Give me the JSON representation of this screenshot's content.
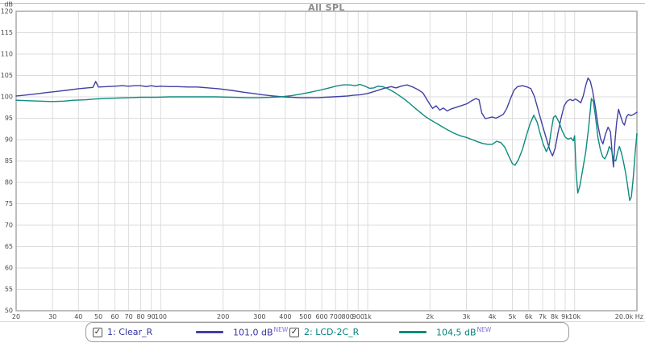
{
  "title": "All SPL",
  "chart_data": {
    "type": "line",
    "title": "All SPL",
    "grid": true,
    "x_axis": {
      "scale": "log",
      "min": 20,
      "max": 20000,
      "unit": "Hz",
      "ticks": [
        {
          "f": 20,
          "label": "20"
        },
        {
          "f": 30,
          "label": "30"
        },
        {
          "f": 40,
          "label": "40"
        },
        {
          "f": 50,
          "label": "50"
        },
        {
          "f": 60,
          "label": "60"
        },
        {
          "f": 70,
          "label": "70"
        },
        {
          "f": 80,
          "label": "80"
        },
        {
          "f": 90,
          "label": "90"
        },
        {
          "f": 100,
          "label": "100"
        },
        {
          "f": 200,
          "label": "200"
        },
        {
          "f": 300,
          "label": "300"
        },
        {
          "f": 400,
          "label": "400"
        },
        {
          "f": 500,
          "label": "500"
        },
        {
          "f": 600,
          "label": "600"
        },
        {
          "f": 700,
          "label": "700"
        },
        {
          "f": 800,
          "label": "800"
        },
        {
          "f": 900,
          "label": "900"
        },
        {
          "f": 1000,
          "label": "1k"
        },
        {
          "f": 2000,
          "label": "2k"
        },
        {
          "f": 3000,
          "label": "3k"
        },
        {
          "f": 4000,
          "label": "4k"
        },
        {
          "f": 5000,
          "label": "5k"
        },
        {
          "f": 6000,
          "label": "6k"
        },
        {
          "f": 7000,
          "label": "7k"
        },
        {
          "f": 8000,
          "label": "8k"
        },
        {
          "f": 9000,
          "label": "9k"
        },
        {
          "f": 10000,
          "label": "10k"
        },
        {
          "f": 20000,
          "label": "20.0k Hz"
        }
      ]
    },
    "y_axis": {
      "unit": "dB",
      "min": 50,
      "max": 120,
      "step": 5,
      "tick_labels": [
        "120",
        "115",
        "110",
        "105",
        "100",
        "95",
        "90",
        "85",
        "80",
        "75",
        "70",
        "65",
        "60",
        "55",
        "50"
      ]
    },
    "series": [
      {
        "name": "1: Clear_R",
        "color": "#4140a5",
        "level": "101,0 dB",
        "points": [
          [
            20,
            100.2
          ],
          [
            22,
            100.4
          ],
          [
            25,
            100.7
          ],
          [
            28,
            101.0
          ],
          [
            32,
            101.3
          ],
          [
            36,
            101.6
          ],
          [
            40,
            101.9
          ],
          [
            44,
            102.1
          ],
          [
            47,
            102.2
          ],
          [
            48.5,
            103.6
          ],
          [
            50,
            102.3
          ],
          [
            55,
            102.4
          ],
          [
            60,
            102.5
          ],
          [
            65,
            102.6
          ],
          [
            70,
            102.5
          ],
          [
            75,
            102.6
          ],
          [
            80,
            102.6
          ],
          [
            85,
            102.4
          ],
          [
            90,
            102.6
          ],
          [
            95,
            102.4
          ],
          [
            100,
            102.5
          ],
          [
            110,
            102.4
          ],
          [
            120,
            102.4
          ],
          [
            135,
            102.3
          ],
          [
            150,
            102.3
          ],
          [
            170,
            102.1
          ],
          [
            190,
            101.9
          ],
          [
            220,
            101.5
          ],
          [
            250,
            101.1
          ],
          [
            280,
            100.8
          ],
          [
            310,
            100.5
          ],
          [
            350,
            100.2
          ],
          [
            390,
            100.0
          ],
          [
            430,
            99.9
          ],
          [
            470,
            99.8
          ],
          [
            520,
            99.8
          ],
          [
            570,
            99.8
          ],
          [
            620,
            99.9
          ],
          [
            680,
            100.0
          ],
          [
            740,
            100.1
          ],
          [
            800,
            100.2
          ],
          [
            860,
            100.4
          ],
          [
            920,
            100.5
          ],
          [
            1000,
            100.8
          ],
          [
            1100,
            101.4
          ],
          [
            1200,
            102.0
          ],
          [
            1300,
            102.4
          ],
          [
            1370,
            102.1
          ],
          [
            1450,
            102.5
          ],
          [
            1550,
            102.8
          ],
          [
            1650,
            102.3
          ],
          [
            1750,
            101.7
          ],
          [
            1850,
            100.9
          ],
          [
            1920,
            99.6
          ],
          [
            2000,
            98.2
          ],
          [
            2060,
            97.3
          ],
          [
            2140,
            97.9
          ],
          [
            2230,
            96.9
          ],
          [
            2320,
            97.4
          ],
          [
            2420,
            96.7
          ],
          [
            2540,
            97.2
          ],
          [
            2700,
            97.6
          ],
          [
            2860,
            98.0
          ],
          [
            3020,
            98.4
          ],
          [
            3180,
            99.1
          ],
          [
            3330,
            99.6
          ],
          [
            3450,
            99.3
          ],
          [
            3560,
            96.2
          ],
          [
            3700,
            94.9
          ],
          [
            3850,
            95.1
          ],
          [
            4000,
            95.3
          ],
          [
            4160,
            95.0
          ],
          [
            4330,
            95.4
          ],
          [
            4520,
            95.9
          ],
          [
            4700,
            97.3
          ],
          [
            4900,
            99.6
          ],
          [
            5100,
            101.6
          ],
          [
            5300,
            102.4
          ],
          [
            5600,
            102.6
          ],
          [
            5900,
            102.3
          ],
          [
            6150,
            101.9
          ],
          [
            6400,
            100.0
          ],
          [
            6700,
            96.5
          ],
          [
            7000,
            93.2
          ],
          [
            7300,
            90.2
          ],
          [
            7600,
            87.5
          ],
          [
            7820,
            86.2
          ],
          [
            8050,
            88.0
          ],
          [
            8300,
            91.5
          ],
          [
            8600,
            95.0
          ],
          [
            8900,
            97.9
          ],
          [
            9200,
            99.0
          ],
          [
            9500,
            99.4
          ],
          [
            9800,
            99.1
          ],
          [
            10100,
            99.5
          ],
          [
            10400,
            99.1
          ],
          [
            10700,
            98.6
          ],
          [
            11000,
            100.2
          ],
          [
            11300,
            102.6
          ],
          [
            11600,
            104.4
          ],
          [
            11900,
            103.7
          ],
          [
            12200,
            101.5
          ],
          [
            12600,
            97.5
          ],
          [
            13000,
            93.0
          ],
          [
            13350,
            90.2
          ],
          [
            13700,
            89.0
          ],
          [
            14100,
            91.3
          ],
          [
            14500,
            92.9
          ],
          [
            14900,
            91.8
          ],
          [
            15200,
            86.5
          ],
          [
            15400,
            83.6
          ],
          [
            15650,
            89.5
          ],
          [
            15950,
            94.0
          ],
          [
            16300,
            97.1
          ],
          [
            16700,
            95.4
          ],
          [
            17100,
            93.9
          ],
          [
            17400,
            93.4
          ],
          [
            17800,
            95.3
          ],
          [
            18200,
            95.9
          ],
          [
            18700,
            95.6
          ],
          [
            19300,
            95.9
          ],
          [
            20000,
            96.4
          ]
        ]
      },
      {
        "name": "2: LCD-2C_R",
        "color": "#0d8b7e",
        "level": "104,5 dB",
        "points": [
          [
            20,
            99.2
          ],
          [
            23,
            99.1
          ],
          [
            26,
            99.0
          ],
          [
            30,
            98.9
          ],
          [
            34,
            99.0
          ],
          [
            38,
            99.2
          ],
          [
            43,
            99.3
          ],
          [
            48,
            99.5
          ],
          [
            54,
            99.6
          ],
          [
            60,
            99.7
          ],
          [
            70,
            99.8
          ],
          [
            80,
            99.9
          ],
          [
            95,
            99.9
          ],
          [
            110,
            100.0
          ],
          [
            130,
            100.0
          ],
          [
            155,
            100.0
          ],
          [
            185,
            100.0
          ],
          [
            220,
            99.9
          ],
          [
            260,
            99.8
          ],
          [
            300,
            99.8
          ],
          [
            340,
            99.9
          ],
          [
            380,
            100.0
          ],
          [
            430,
            100.3
          ],
          [
            480,
            100.7
          ],
          [
            530,
            101.1
          ],
          [
            580,
            101.5
          ],
          [
            640,
            102.0
          ],
          [
            700,
            102.5
          ],
          [
            760,
            102.8
          ],
          [
            820,
            102.8
          ],
          [
            870,
            102.6
          ],
          [
            920,
            102.9
          ],
          [
            970,
            102.5
          ],
          [
            1020,
            102.0
          ],
          [
            1070,
            102.1
          ],
          [
            1120,
            102.5
          ],
          [
            1180,
            102.4
          ],
          [
            1250,
            101.9
          ],
          [
            1330,
            101.2
          ],
          [
            1420,
            100.3
          ],
          [
            1510,
            99.4
          ],
          [
            1600,
            98.4
          ],
          [
            1700,
            97.3
          ],
          [
            1800,
            96.3
          ],
          [
            1900,
            95.4
          ],
          [
            2000,
            94.7
          ],
          [
            2100,
            94.1
          ],
          [
            2200,
            93.5
          ],
          [
            2310,
            92.9
          ],
          [
            2430,
            92.3
          ],
          [
            2560,
            91.7
          ],
          [
            2700,
            91.2
          ],
          [
            2850,
            90.8
          ],
          [
            3000,
            90.5
          ],
          [
            3200,
            90.0
          ],
          [
            3400,
            89.5
          ],
          [
            3600,
            89.1
          ],
          [
            3800,
            88.9
          ],
          [
            4000,
            88.9
          ],
          [
            4200,
            89.6
          ],
          [
            4400,
            89.3
          ],
          [
            4600,
            88.2
          ],
          [
            4800,
            86.2
          ],
          [
            5000,
            84.4
          ],
          [
            5150,
            84.0
          ],
          [
            5350,
            85.3
          ],
          [
            5600,
            87.8
          ],
          [
            5850,
            91.0
          ],
          [
            6100,
            93.8
          ],
          [
            6350,
            95.7
          ],
          [
            6600,
            94.0
          ],
          [
            6800,
            91.6
          ],
          [
            7050,
            88.9
          ],
          [
            7300,
            87.2
          ],
          [
            7520,
            88.6
          ],
          [
            7700,
            92.0
          ],
          [
            7900,
            95.2
          ],
          [
            8100,
            95.6
          ],
          [
            8400,
            94.1
          ],
          [
            8700,
            92.1
          ],
          [
            9000,
            90.6
          ],
          [
            9300,
            90.1
          ],
          [
            9600,
            90.4
          ],
          [
            9850,
            89.7
          ],
          [
            10000,
            90.9
          ],
          [
            10150,
            83.0
          ],
          [
            10350,
            77.5
          ],
          [
            10600,
            79.2
          ],
          [
            10900,
            82.5
          ],
          [
            11300,
            87.0
          ],
          [
            11700,
            93.0
          ],
          [
            12050,
            99.6
          ],
          [
            12300,
            99.0
          ],
          [
            12600,
            95.5
          ],
          [
            12950,
            90.5
          ],
          [
            13300,
            87.8
          ],
          [
            13650,
            86.0
          ],
          [
            14000,
            85.5
          ],
          [
            14350,
            86.6
          ],
          [
            14700,
            88.4
          ],
          [
            15050,
            87.6
          ],
          [
            15400,
            85.4
          ],
          [
            15800,
            85.0
          ],
          [
            16150,
            87.2
          ],
          [
            16450,
            88.4
          ],
          [
            16800,
            87.0
          ],
          [
            17200,
            84.9
          ],
          [
            17600,
            82.4
          ],
          [
            18000,
            79.4
          ],
          [
            18450,
            75.8
          ],
          [
            18800,
            76.6
          ],
          [
            19200,
            81.0
          ],
          [
            19600,
            86.8
          ],
          [
            20000,
            91.4
          ]
        ]
      }
    ]
  },
  "legend": {
    "entries": [
      {
        "checked": true,
        "checkmark": "✓",
        "label": "1: Clear_R",
        "value": "101,0 dB",
        "tag": "NEW"
      },
      {
        "checked": true,
        "checkmark": "✓",
        "label": "2: LCD-2C_R",
        "value": "104,5 dB",
        "tag": "NEW"
      }
    ]
  }
}
